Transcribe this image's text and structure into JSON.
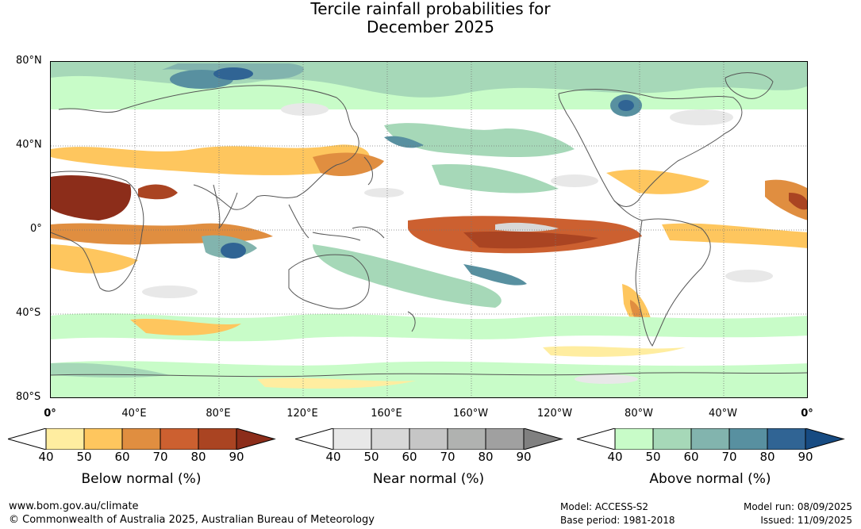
{
  "title_line1": "Tercile rainfall probabilities for",
  "title_line2": "December 2025",
  "lat_labels": [
    "80°N",
    "40°N",
    "0°",
    "40°S",
    "80°S"
  ],
  "lon_labels": [
    "0°",
    "40°E",
    "80°E",
    "120°E",
    "160°E",
    "160°W",
    "120°W",
    "80°W",
    "40°W",
    "0°"
  ],
  "colorbars": [
    {
      "label": "Below normal (%)",
      "ticks": [
        "40",
        "50",
        "60",
        "70",
        "80",
        "90"
      ],
      "colors": [
        "#ffeda0",
        "#fec65e",
        "#e08e40",
        "#cc6030",
        "#aa4422",
        "#8c2d1a"
      ]
    },
    {
      "label": "Near normal (%)",
      "ticks": [
        "40",
        "50",
        "60",
        "70",
        "80",
        "90"
      ],
      "colors": [
        "#e8e8e8",
        "#d8d8d8",
        "#c6c6c6",
        "#b0b2b0",
        "#a0a0a0",
        "#808080"
      ]
    },
    {
      "label": "Above normal (%)",
      "ticks": [
        "40",
        "50",
        "60",
        "70",
        "80",
        "90"
      ],
      "colors": [
        "#c8fcc8",
        "#a6d8b8",
        "#82b4ae",
        "#5890a0",
        "#306494",
        "#174b82"
      ]
    }
  ],
  "footer": {
    "url": "www.bom.gov.au/climate",
    "copyright": "© Commonwealth of Australia 2025, Australian Bureau of Meteorology",
    "model": "Model: ACCESS-S2",
    "base_period": "Base period: 1981-2018",
    "model_run": "Model run: 08/09/2025",
    "issued": "Issued: 11/09/2025"
  }
}
